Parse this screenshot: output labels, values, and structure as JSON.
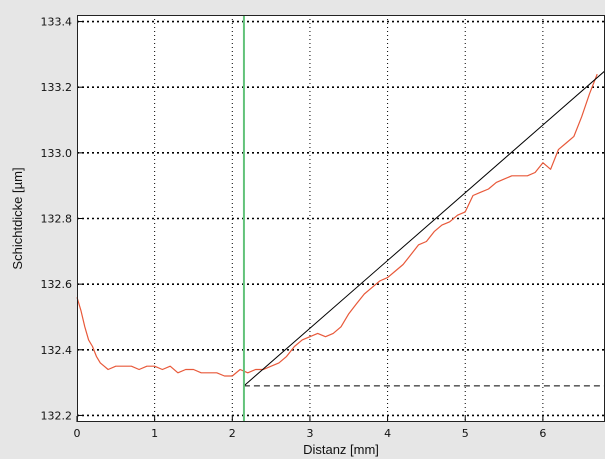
{
  "chart_data": {
    "type": "line",
    "xlabel": "Distanz [mm]",
    "ylabel": "Schichtdicke [µm]",
    "xlim": [
      0,
      6.8
    ],
    "ylim": [
      132.18,
      133.42
    ],
    "x_ticks": [
      0,
      1,
      2,
      3,
      4,
      5,
      6
    ],
    "x_tick_labels": [
      "0",
      "1",
      "2",
      "3",
      "4",
      "5",
      "6"
    ],
    "y_ticks": [
      132.2,
      132.4,
      132.6,
      132.8,
      133.0,
      133.2,
      133.4
    ],
    "y_tick_labels": [
      "132.2",
      "132.4",
      "132.6",
      "132.8",
      "133.0",
      "133.2",
      "133.4"
    ],
    "grid": true,
    "colors": {
      "background": "#e6e6e6",
      "plot_area": "#ffffff",
      "profile": "#e8593a",
      "reference_line": "#000000",
      "marker": "#63c27a"
    },
    "marker_x": 2.15,
    "series": [
      {
        "style": "profile",
        "x": [
          0.0,
          0.05,
          0.1,
          0.15,
          0.2,
          0.25,
          0.3,
          0.35,
          0.4,
          0.5,
          0.6,
          0.7,
          0.8,
          0.9,
          1.0,
          1.1,
          1.2,
          1.3,
          1.4,
          1.5,
          1.6,
          1.7,
          1.8,
          1.9,
          2.0,
          2.1,
          2.2,
          2.3,
          2.4,
          2.5,
          2.6,
          2.7,
          2.8,
          2.9,
          3.0,
          3.1,
          3.2,
          3.3,
          3.4,
          3.5,
          3.6,
          3.7,
          3.8,
          3.9,
          4.0,
          4.1,
          4.2,
          4.3,
          4.4,
          4.5,
          4.6,
          4.7,
          4.8,
          4.9,
          5.0,
          5.1,
          5.2,
          5.3,
          5.4,
          5.5,
          5.6,
          5.7,
          5.8,
          5.9,
          6.0,
          6.1,
          6.2,
          6.3,
          6.4,
          6.5,
          6.6,
          6.7
        ],
        "y": [
          132.56,
          132.52,
          132.47,
          132.43,
          132.41,
          132.38,
          132.36,
          132.35,
          132.34,
          132.35,
          132.35,
          132.35,
          132.34,
          132.35,
          132.35,
          132.34,
          132.35,
          132.33,
          132.34,
          132.34,
          132.33,
          132.33,
          132.33,
          132.32,
          132.32,
          132.34,
          132.33,
          132.34,
          132.34,
          132.35,
          132.36,
          132.38,
          132.41,
          132.43,
          132.44,
          132.45,
          132.44,
          132.45,
          132.47,
          132.51,
          132.54,
          132.57,
          132.59,
          132.61,
          132.62,
          132.64,
          132.66,
          132.69,
          132.72,
          132.73,
          132.76,
          132.78,
          132.79,
          132.81,
          132.82,
          132.87,
          132.88,
          132.89,
          132.91,
          132.92,
          132.93,
          132.93,
          132.93,
          132.94,
          132.97,
          132.95,
          133.01,
          133.03,
          133.05,
          133.11,
          133.18,
          133.24
        ]
      },
      {
        "style": "reference-diagonal",
        "x": [
          2.15,
          6.8
        ],
        "y": [
          132.29,
          133.25
        ]
      },
      {
        "style": "reference-baseline",
        "x": [
          2.15,
          6.8
        ],
        "y": [
          132.29,
          132.29
        ]
      }
    ]
  }
}
